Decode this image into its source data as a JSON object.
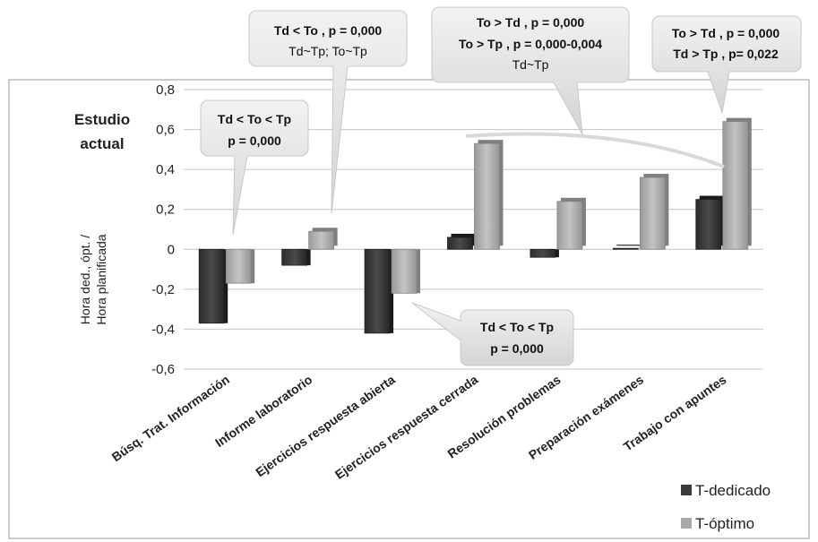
{
  "chart_data": {
    "type": "bar",
    "subtitle_lines": [
      "Estudio",
      "actual"
    ],
    "ylabel_lines": [
      "Hora ded., ópt. /",
      "Hora planificada"
    ],
    "xlabel": "",
    "ylim": [
      -0.6,
      0.8
    ],
    "yticks": [
      "0,8",
      "0,6",
      "0,4",
      "0,2",
      "0",
      "-0,2",
      "-0,4",
      "-0,6"
    ],
    "grid": true,
    "legend_position": "bottom-right",
    "categories": [
      "Búsq. Trat. Información",
      "Informe laboratorio",
      "Ejercicios respuesta abierta",
      "Ejercicios respuesta cerrada",
      "Resolución problemas",
      "Preparación exámenes",
      "Trabajo con apuntes"
    ],
    "series": [
      {
        "name": "T-dedicado",
        "color": "#3a3a3a",
        "values": [
          -0.37,
          -0.08,
          -0.42,
          0.06,
          -0.04,
          0.005,
          0.25
        ]
      },
      {
        "name": "T-óptimo",
        "color": "#a9a9a9",
        "values": [
          -0.17,
          0.09,
          -0.22,
          0.53,
          0.24,
          0.36,
          0.64
        ]
      }
    ],
    "annotations": [
      {
        "lines": [
          "Td < To < Tp",
          "p = 0,000"
        ],
        "bold": [
          true,
          true
        ]
      },
      {
        "lines": [
          "Td < To , p = 0,000",
          "Td~Tp; To~Tp"
        ],
        "bold": [
          true,
          false
        ]
      },
      {
        "lines": [
          "To > Td , p = 0,000",
          "To > Tp , p = 0,000-0,004",
          "Td~Tp"
        ],
        "bold": [
          true,
          true,
          false
        ]
      },
      {
        "lines": [
          "To > Td , p = 0,000",
          "Td > Tp , p= 0,022"
        ],
        "bold": [
          true,
          true
        ]
      },
      {
        "lines": [
          "Td < To < Tp",
          "p = 0,000"
        ],
        "bold": [
          true,
          true
        ]
      }
    ]
  }
}
